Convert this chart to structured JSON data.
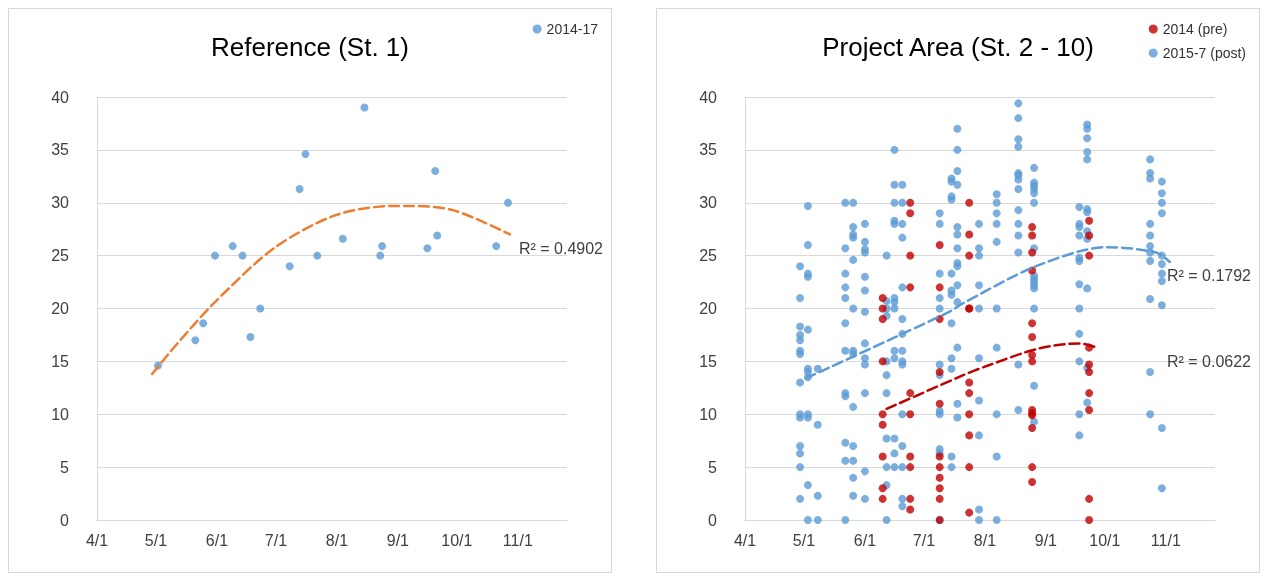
{
  "chart_data": [
    {
      "type": "scatter",
      "title": "Reference (St. 1)",
      "legend": "top right",
      "grid": "y",
      "marker": "circle",
      "xlim": [
        "--04-01",
        "--11-26"
      ],
      "xticks": [
        {
          "value": "--04-01",
          "label": "4/1"
        },
        {
          "value": "--05-01",
          "label": "5/1"
        },
        {
          "value": "--06-01",
          "label": "6/1"
        },
        {
          "value": "--07-01",
          "label": "7/1"
        },
        {
          "value": "--08-01",
          "label": "8/1"
        },
        {
          "value": "--09-01",
          "label": "9/1"
        },
        {
          "value": "--10-01",
          "label": "10/1"
        },
        {
          "value": "--11-01",
          "label": "11/1"
        }
      ],
      "ylim": [
        0,
        40
      ],
      "yticks": [
        0,
        5,
        10,
        15,
        20,
        25,
        30,
        35,
        40
      ],
      "series": [
        {
          "name": "2014-17",
          "color": "#5b9bd5",
          "x": [
            "--05-02",
            "--05-21",
            "--05-25",
            "--05-31",
            "--06-09",
            "--06-14",
            "--06-18",
            "--06-23",
            "--07-08",
            "--07-13",
            "--07-16",
            "--07-22",
            "--08-04",
            "--08-15",
            "--08-23",
            "--08-24",
            "--09-16",
            "--09-20",
            "--09-21",
            "--10-21",
            "--10-27"
          ],
          "values": [
            14.6,
            17,
            18.6,
            25,
            25.9,
            25,
            17.3,
            20,
            24,
            31.3,
            34.6,
            25,
            26.6,
            39,
            25,
            25.9,
            25.7,
            33,
            26.9,
            25.9,
            30
          ]
        },
        {
          "type": "line",
          "color": "#ed7d31",
          "line_style": "dashed",
          "marker": "none",
          "x": [
            "--04-29",
            "--05-11",
            "--05-31",
            "--06-30",
            "--07-31",
            "--08-30",
            "--09-05",
            "--09-29",
            "--10-28"
          ],
          "values": [
            13.8,
            16.5,
            20.6,
            25.7,
            28.8,
            29.7,
            29.7,
            29.3,
            27
          ]
        }
      ],
      "annotations": [
        "R² = 0.4902"
      ]
    },
    {
      "type": "scatter",
      "title": "Project Area (St. 2 - 10)",
      "legend": "top right",
      "grid": "y",
      "marker": "circle",
      "xlim": [
        "--04-01",
        "--11-26"
      ],
      "xticks": [
        {
          "value": "--04-01",
          "label": "4/1"
        },
        {
          "value": "--05-01",
          "label": "5/1"
        },
        {
          "value": "--06-01",
          "label": "6/1"
        },
        {
          "value": "--07-01",
          "label": "7/1"
        },
        {
          "value": "--08-01",
          "label": "8/1"
        },
        {
          "value": "--09-01",
          "label": "9/1"
        },
        {
          "value": "--10-01",
          "label": "10/1"
        },
        {
          "value": "--11-01",
          "label": "11/1"
        }
      ],
      "ylim": [
        0,
        40
      ],
      "yticks": [
        0,
        5,
        10,
        15,
        20,
        25,
        30,
        35,
        40
      ],
      "series": [
        {
          "name": "2015-7 (post)",
          "color": "#5b9bd5",
          "x": [
            "--04-29",
            "--04-29",
            "--04-29",
            "--04-29",
            "--04-29",
            "--04-29",
            "--04-29",
            "--04-29",
            "--04-29",
            "--04-29",
            "--04-29",
            "--04-29",
            "--04-29",
            "--04-29",
            "--05-03",
            "--05-03",
            "--05-03",
            "--05-03",
            "--05-03",
            "--05-03",
            "--05-03",
            "--05-03",
            "--05-03",
            "--05-03",
            "--05-03",
            "--05-03",
            "--05-08",
            "--05-08",
            "--05-08",
            "--05-08",
            "--05-22",
            "--05-22",
            "--05-22",
            "--05-22",
            "--05-22",
            "--05-22",
            "--05-22",
            "--05-22",
            "--05-22",
            "--05-22",
            "--05-22",
            "--05-22",
            "--05-26",
            "--05-26",
            "--05-26",
            "--05-26",
            "--05-26",
            "--05-26",
            "--05-26",
            "--05-26",
            "--05-26",
            "--05-26",
            "--05-26",
            "--05-26",
            "--05-26",
            "--06-01",
            "--06-01",
            "--06-01",
            "--06-01",
            "--06-01",
            "--06-01",
            "--06-01",
            "--06-01",
            "--06-01",
            "--06-01",
            "--06-01",
            "--06-01",
            "--06-01",
            "--06-12",
            "--06-12",
            "--06-12",
            "--06-12",
            "--06-12",
            "--06-12",
            "--06-12",
            "--06-12",
            "--06-12",
            "--06-12",
            "--06-12",
            "--06-16",
            "--06-16",
            "--06-16",
            "--06-16",
            "--06-16",
            "--06-16",
            "--06-16",
            "--06-16",
            "--06-16",
            "--06-16",
            "--06-16",
            "--06-16",
            "--06-16",
            "--06-20",
            "--06-20",
            "--06-20",
            "--06-20",
            "--06-20",
            "--06-20",
            "--06-20",
            "--06-20",
            "--06-20",
            "--06-20",
            "--06-20",
            "--06-20",
            "--06-20",
            "--06-20",
            "--06-20",
            "--07-09",
            "--07-09",
            "--07-09",
            "--07-09",
            "--07-09",
            "--07-09",
            "--07-09",
            "--07-09",
            "--07-09",
            "--07-09",
            "--07-09",
            "--07-09",
            "--07-15",
            "--07-15",
            "--07-15",
            "--07-15",
            "--07-15",
            "--07-15",
            "--07-15",
            "--07-15",
            "--07-15",
            "--07-15",
            "--07-15",
            "--07-15",
            "--07-18",
            "--07-18",
            "--07-18",
            "--07-18",
            "--07-18",
            "--07-18",
            "--07-18",
            "--07-18",
            "--07-18",
            "--07-18",
            "--07-18",
            "--07-18",
            "--07-18",
            "--07-18",
            "--07-29",
            "--07-29",
            "--07-29",
            "--07-29",
            "--07-29",
            "--07-29",
            "--07-29",
            "--07-29",
            "--07-29",
            "--07-29",
            "--08-07",
            "--08-07",
            "--08-07",
            "--08-07",
            "--08-07",
            "--08-07",
            "--08-07",
            "--08-07",
            "--08-07",
            "--08-07",
            "--08-18",
            "--08-18",
            "--08-18",
            "--08-18",
            "--08-18",
            "--08-18",
            "--08-18",
            "--08-18",
            "--08-18",
            "--08-18",
            "--08-18",
            "--08-18",
            "--08-18",
            "--08-18",
            "--08-26",
            "--08-26",
            "--08-26",
            "--08-26",
            "--08-26",
            "--08-26",
            "--08-26",
            "--08-26",
            "--08-26",
            "--08-26",
            "--08-26",
            "--08-26",
            "--08-26",
            "--08-26",
            "--08-26",
            "--09-18",
            "--09-18",
            "--09-18",
            "--09-18",
            "--09-18",
            "--09-18",
            "--09-18",
            "--09-18",
            "--09-18",
            "--09-18",
            "--09-18",
            "--09-18",
            "--09-22",
            "--09-22",
            "--09-22",
            "--09-22",
            "--09-22",
            "--09-22",
            "--09-22",
            "--09-22",
            "--09-22",
            "--09-22",
            "--09-22",
            "--09-22",
            "--10-24",
            "--10-24",
            "--10-24",
            "--10-24",
            "--10-24",
            "--10-24",
            "--10-24",
            "--10-24",
            "--10-24",
            "--10-24",
            "--10-24",
            "--10-30",
            "--10-30",
            "--10-30",
            "--10-30",
            "--10-30",
            "--10-30",
            "--10-30",
            "--10-30",
            "--10-30",
            "--10-30",
            "--10-30"
          ],
          "values": [
            24,
            21,
            18.3,
            17.5,
            17,
            16,
            15.7,
            13,
            10,
            9.7,
            7,
            6.3,
            5,
            2,
            29.7,
            26,
            23.3,
            23,
            18,
            14.3,
            14,
            13.5,
            10,
            9.7,
            3.3,
            0,
            14.3,
            9,
            2.3,
            0,
            30,
            25.7,
            23.3,
            22,
            21,
            18.6,
            16,
            12,
            11.7,
            7.3,
            5.6,
            0,
            30,
            27.7,
            27,
            26.7,
            24.6,
            20,
            16,
            15.7,
            10.7,
            7,
            5.6,
            4,
            2.3,
            28,
            26.3,
            25.6,
            25.3,
            23,
            21.7,
            19.7,
            16.7,
            15.3,
            14.7,
            12,
            4.6,
            2,
            25,
            20.7,
            20,
            19.3,
            15,
            13.7,
            12,
            7.7,
            5,
            3.3,
            0,
            35,
            31.7,
            30,
            28.3,
            28,
            21,
            20.6,
            20,
            16,
            15.3,
            7.7,
            6.3,
            5,
            31.7,
            30,
            28,
            26.7,
            22,
            19,
            17.6,
            16,
            15,
            14.7,
            10,
            7,
            5,
            2,
            1.3,
            29,
            28,
            23.3,
            21,
            20,
            14.7,
            13.7,
            10.3,
            10,
            6.7,
            6.3,
            0,
            32.3,
            32,
            30.6,
            30.3,
            23.3,
            21.7,
            21.3,
            18.6,
            15.3,
            14.3,
            6,
            5,
            37,
            35,
            33,
            31.7,
            27.7,
            27,
            25.7,
            24.3,
            24,
            22.2,
            20.6,
            16.3,
            11,
            9.7,
            28,
            25.7,
            25,
            22.2,
            20,
            15.3,
            11.3,
            8,
            1,
            0,
            30.8,
            30,
            29,
            28,
            26.3,
            20,
            16.3,
            10,
            6,
            0,
            39.4,
            38,
            36,
            35.3,
            32.8,
            32.6,
            32.2,
            31.3,
            29.3,
            28,
            26.9,
            25.3,
            14.7,
            10.4,
            33.3,
            31.9,
            31.6,
            31.3,
            30.9,
            30,
            25.7,
            23.1,
            22.8,
            22.5,
            22.2,
            21.9,
            20,
            12.7,
            9.3,
            29.6,
            28,
            27.7,
            26.9,
            24.8,
            24.5,
            22.3,
            20,
            17.6,
            15,
            10,
            8,
            37.4,
            37,
            36.1,
            34.8,
            34.1,
            29.4,
            29.1,
            27.3,
            26.6,
            21.9,
            14.4,
            11.1,
            34.1,
            32.8,
            32.3,
            28,
            26.9,
            25.9,
            25.3,
            24.5,
            20.9,
            14,
            10,
            32,
            30.9,
            30,
            29,
            25,
            24.2,
            23.3,
            22.6,
            20.3,
            8.7,
            3
          ]
        },
        {
          "name": "2014 (pre)",
          "color": "#c00000",
          "x": [
            "--06-10",
            "--06-10",
            "--06-10",
            "--06-10",
            "--06-10",
            "--06-10",
            "--06-10",
            "--06-10",
            "--06-10",
            "--06-24",
            "--06-24",
            "--06-24",
            "--06-24",
            "--06-24",
            "--06-24",
            "--06-24",
            "--06-24",
            "--06-24",
            "--06-24",
            "--07-09",
            "--07-09",
            "--07-09",
            "--07-09",
            "--07-09",
            "--07-09",
            "--07-09",
            "--07-09",
            "--07-09",
            "--07-09",
            "--07-09",
            "--07-24",
            "--07-24",
            "--07-24",
            "--07-24",
            "--07-24",
            "--07-24",
            "--07-24",
            "--07-24",
            "--07-24",
            "--07-24",
            "--07-24",
            "--08-25",
            "--08-25",
            "--08-25",
            "--08-25",
            "--08-25",
            "--08-25",
            "--08-25",
            "--08-25",
            "--08-25",
            "--08-25",
            "--08-25",
            "--08-25",
            "--08-25",
            "--08-25",
            "--09-23",
            "--09-23",
            "--09-23",
            "--09-23",
            "--09-23",
            "--09-23",
            "--09-23",
            "--09-23",
            "--09-23",
            "--09-23"
          ],
          "values": [
            21,
            20,
            19,
            15,
            10,
            9,
            6,
            3,
            2,
            30,
            29,
            25,
            22,
            12,
            10,
            6,
            5,
            2,
            1,
            26,
            22,
            19,
            14,
            11,
            6,
            5,
            4,
            3,
            2,
            0,
            30,
            27,
            25,
            20,
            13,
            12,
            10,
            8,
            5,
            0.7,
            20,
            27.7,
            26.9,
            25.3,
            23.6,
            18.6,
            17.3,
            15.6,
            15,
            10.4,
            10.1,
            9.9,
            8.7,
            5,
            3.6,
            28.3,
            26.9,
            25,
            16.3,
            14.7,
            14,
            12,
            10.4,
            2,
            0
          ]
        },
        {
          "type": "line",
          "color": "#5b9bd5",
          "line_style": "dashed",
          "marker": "none",
          "x": [
            "--05-02",
            "--06-20",
            "--07-14",
            "--07-21",
            "--08-27",
            "--10-02",
            "--10-27",
            "--11-03"
          ],
          "values": [
            13.4,
            17.6,
            19.7,
            20.5,
            24,
            25.8,
            25.3,
            24.4
          ]
        },
        {
          "type": "line",
          "color": "#c00000",
          "line_style": "dashed",
          "marker": "none",
          "x": [
            "--06-12",
            "--07-21",
            "--08-01",
            "--08-28",
            "--09-18",
            "--09-27"
          ],
          "values": [
            10.5,
            13.7,
            14.5,
            16.2,
            16.7,
            16.3
          ]
        }
      ],
      "annotations": [
        "R² = 0.1792",
        "R² = 0.0622"
      ]
    }
  ]
}
